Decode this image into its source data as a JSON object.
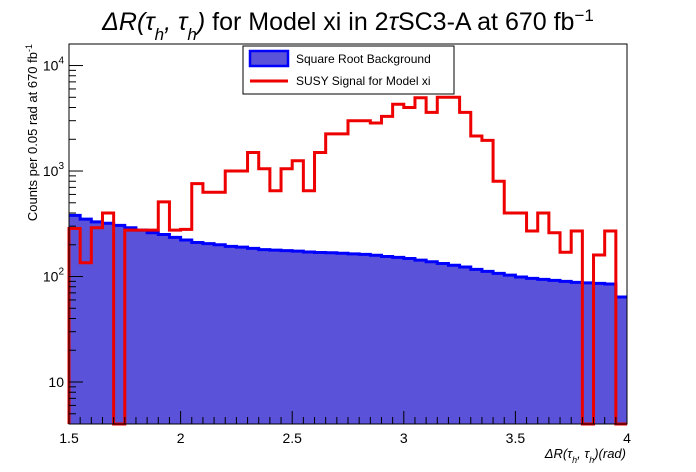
{
  "chart_data": {
    "type": "histogram",
    "title_parts": [
      {
        "t": "ΔR(τ",
        "it": true
      },
      {
        "t": "h",
        "sub": true,
        "it": true
      },
      {
        "t": ", τ",
        "it": true
      },
      {
        "t": "h",
        "sub": true,
        "it": true
      },
      {
        "t": ")",
        "it": true
      },
      {
        "t": " for Model xi in 2"
      },
      {
        "t": "τ",
        "it": true
      },
      {
        "t": "SC3-A at 670 fb"
      },
      {
        "t": "−1",
        "sup": true
      }
    ],
    "title": "ΔR(τh, τh) for Model xi in 2τSC3-A at 670 fb−1",
    "xlabel_parts": [
      {
        "t": "ΔR(τ",
        "it": true
      },
      {
        "t": "h",
        "sub": true,
        "it": true
      },
      {
        "t": ", τ",
        "it": true
      },
      {
        "t": "h",
        "sub": true,
        "it": true
      },
      {
        "t": ")(rad)",
        "it": true
      }
    ],
    "xlabel": "ΔR(τh, τh)(rad)",
    "ylabel_parts": [
      {
        "t": "Counts per 0.05 rad at 670 fb"
      },
      {
        "t": "-1",
        "sup": true
      }
    ],
    "ylabel": "Counts per 0.05 rad at 670 fb-1",
    "xlim": [
      1.5,
      4.0
    ],
    "ylim": [
      4,
      16000
    ],
    "yscale": "log",
    "x_ticks": [
      "1.5",
      "2",
      "2.5",
      "3",
      "3.5",
      "4"
    ],
    "y_ticks": [
      {
        "value": 10,
        "base": "10",
        "exp": ""
      },
      {
        "value": 100,
        "base": "10",
        "exp": "2"
      },
      {
        "value": 1000,
        "base": "10",
        "exp": "3"
      },
      {
        "value": 10000,
        "base": "10",
        "exp": "4"
      }
    ],
    "bin_width": 0.05,
    "legend_position": "top-center",
    "series": [
      {
        "name": "Square Root Background",
        "style": "filled",
        "fill_color": "#5a52d8",
        "line_color": "#0000ff",
        "values": [
          380,
          350,
          330,
          320,
          305,
          290,
          275,
          260,
          250,
          235,
          222,
          210,
          205,
          200,
          193,
          190,
          185,
          180,
          178,
          176,
          174,
          171,
          169,
          168,
          166,
          164,
          162,
          159,
          155,
          152,
          148,
          143,
          138,
          133,
          128,
          123,
          117,
          112,
          107,
          103,
          99,
          96,
          94,
          92,
          90,
          88,
          87,
          86,
          85,
          64
        ]
      },
      {
        "name": "SUSY Signal for Model xi",
        "style": "line",
        "line_color": "#ee0000",
        "values": [
          285,
          135,
          290,
          400,
          4,
          275,
          275,
          275,
          510,
          275,
          280,
          760,
          630,
          630,
          1000,
          1000,
          1500,
          1050,
          650,
          1050,
          1250,
          650,
          1500,
          2250,
          2250,
          3000,
          3000,
          2850,
          3300,
          4300,
          4000,
          4950,
          3600,
          5000,
          5000,
          3600,
          2150,
          1950,
          800,
          400,
          400,
          270,
          400,
          260,
          170,
          270,
          4,
          160,
          270,
          4
        ]
      }
    ]
  }
}
